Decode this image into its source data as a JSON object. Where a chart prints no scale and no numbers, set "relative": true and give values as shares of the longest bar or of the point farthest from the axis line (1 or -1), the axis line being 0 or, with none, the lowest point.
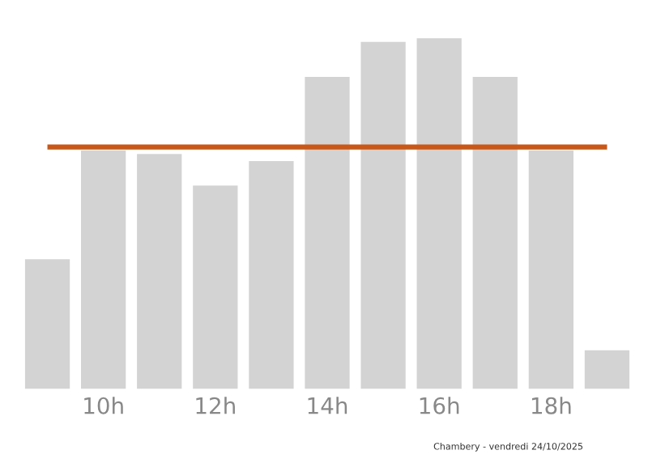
{
  "chart_data": {
    "type": "bar",
    "relative": true,
    "categories": [
      null,
      "10h",
      null,
      "12h",
      null,
      "14h",
      null,
      "16h",
      null,
      "18h",
      null
    ],
    "values": [
      0.37,
      0.68,
      0.67,
      0.58,
      0.65,
      0.89,
      0.99,
      1.0,
      0.89,
      0.68,
      0.11
    ],
    "color": "#d3d3d3",
    "ref_lines": [
      {
        "axis": "y",
        "value": 0.69,
        "color": "#c8581a"
      }
    ],
    "annotations": [
      "Chambery - vendredi 24/10/2025"
    ],
    "grid": false,
    "legend": false
  }
}
